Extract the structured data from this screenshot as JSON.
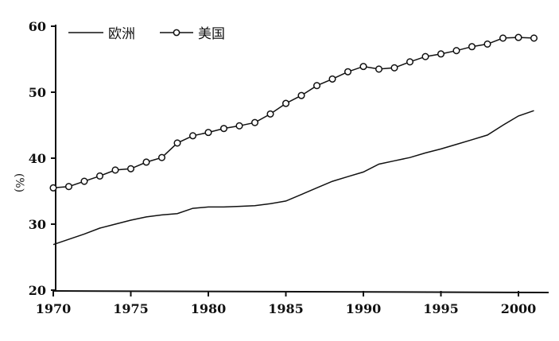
{
  "chart_data": {
    "type": "line",
    "title": "",
    "xlabel": "",
    "ylabel": "(%)",
    "xlim": [
      1970,
      2001
    ],
    "ylim": [
      20,
      60
    ],
    "xticks": [
      1970,
      1975,
      1980,
      1985,
      1990,
      1995,
      2000
    ],
    "yticks": [
      20,
      30,
      40,
      50,
      60
    ],
    "grid": false,
    "legend_position": "top-left",
    "x": [
      1970,
      1971,
      1972,
      1973,
      1974,
      1975,
      1976,
      1977,
      1978,
      1979,
      1980,
      1981,
      1982,
      1983,
      1984,
      1985,
      1986,
      1987,
      1988,
      1989,
      1990,
      1991,
      1992,
      1993,
      1994,
      1995,
      1996,
      1997,
      1998,
      1999,
      2000,
      2001
    ],
    "series": [
      {
        "name": "欧洲",
        "marker": "none",
        "values": [
          26.9,
          27.7,
          28.5,
          29.4,
          30.0,
          30.6,
          31.1,
          31.4,
          31.6,
          32.4,
          32.6,
          32.6,
          32.7,
          32.8,
          33.1,
          33.5,
          34.5,
          35.5,
          36.5,
          37.2,
          37.9,
          39.1,
          39.6,
          40.1,
          40.8,
          41.4,
          42.1,
          42.8,
          43.5,
          45.0,
          46.4,
          47.2
        ]
      },
      {
        "name": "美国",
        "marker": "open-circle",
        "values": [
          35.5,
          35.7,
          36.5,
          37.3,
          38.2,
          38.4,
          39.4,
          40.1,
          42.3,
          43.4,
          43.9,
          44.5,
          44.9,
          45.4,
          46.7,
          48.3,
          49.5,
          51.0,
          52.0,
          53.1,
          53.9,
          53.5,
          53.7,
          54.6,
          55.4,
          55.8,
          56.3,
          56.9,
          57.3,
          58.2,
          58.3,
          58.2
        ]
      }
    ],
    "colors": {
      "line": "#111111",
      "background": "#ffffff"
    }
  }
}
